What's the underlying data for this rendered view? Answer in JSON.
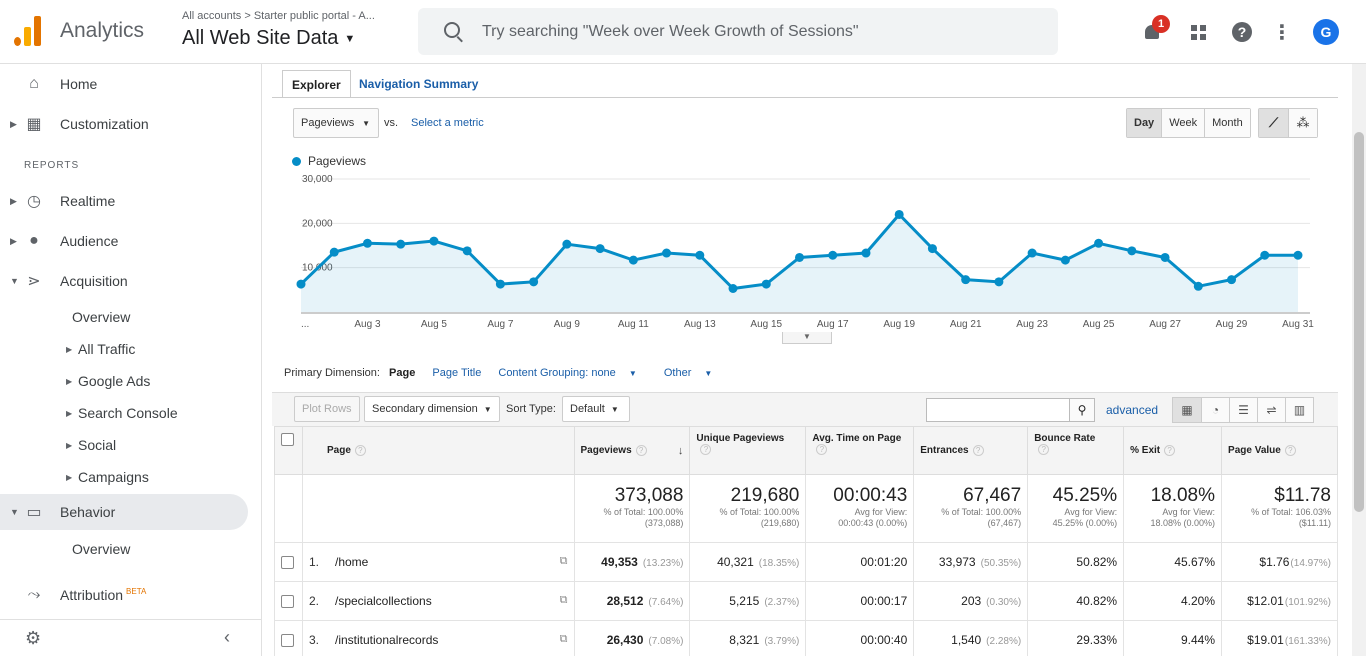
{
  "header": {
    "brand": "Analytics",
    "account_crumb": "All accounts > Starter public portal - A...",
    "account_name": "All Web Site Data",
    "search_placeholder": "Try searching \"Week over Week Growth of Sessions\"",
    "notification_count": "1",
    "avatar_letter": "G",
    "icons": [
      "search-icon",
      "bell-icon",
      "apps-icon",
      "help-icon",
      "more-vert-icon"
    ]
  },
  "sidebar": {
    "home": "Home",
    "customization": "Customization",
    "reports_heading": "REPORTS",
    "realtime": "Realtime",
    "audience": "Audience",
    "acquisition": "Acquisition",
    "acq_overview": "Overview",
    "all_traffic": "All Traffic",
    "google_ads": "Google Ads",
    "search_console": "Search Console",
    "social": "Social",
    "campaigns": "Campaigns",
    "behavior": "Behavior",
    "beh_overview": "Overview",
    "attribution": "Attribution",
    "beta": "BETA"
  },
  "tabs": {
    "explorer": "Explorer",
    "nav_summary": "Navigation Summary"
  },
  "controls": {
    "metric": "Pageviews",
    "vs": "vs.",
    "select_metric": "Select a metric",
    "day": "Day",
    "week": "Week",
    "month": "Month"
  },
  "chart_data": {
    "type": "area",
    "legend": [
      "Pageviews"
    ],
    "yticks": [
      "30,000",
      "20,000",
      "10,000"
    ],
    "ylim": [
      0,
      30000
    ],
    "xlabels": [
      "...",
      "Aug 3",
      "Aug 5",
      "Aug 7",
      "Aug 9",
      "Aug 11",
      "Aug 13",
      "Aug 15",
      "Aug 17",
      "Aug 19",
      "Aug 21",
      "Aug 23",
      "Aug 25",
      "Aug 27",
      "Aug 29",
      "Aug 31"
    ],
    "x": [
      1,
      2,
      3,
      4,
      5,
      6,
      7,
      8,
      9,
      10,
      11,
      12,
      13,
      14,
      15,
      16,
      17,
      18,
      19,
      20,
      21,
      22,
      23,
      24,
      25,
      26,
      27,
      28,
      29,
      30,
      31
    ],
    "series": [
      {
        "name": "Pageviews",
        "color": "#058dc7",
        "values": [
          6300,
          13500,
          15500,
          15300,
          16000,
          13800,
          6300,
          6800,
          15300,
          14300,
          11700,
          13300,
          12800,
          5300,
          6300,
          12300,
          12800,
          13300,
          22000,
          14300,
          7300,
          6800,
          13300,
          11700,
          15500,
          13800,
          12300,
          5800,
          7300,
          12800,
          12800
        ]
      }
    ]
  },
  "dimension": {
    "label": "Primary Dimension:",
    "current": "Page",
    "page_title": "Page Title",
    "content_grouping": "Content Grouping: none",
    "other": "Other"
  },
  "toolbar": {
    "plot_rows": "Plot Rows",
    "secondary": "Secondary dimension",
    "sort_type_label": "Sort Type:",
    "sort_type": "Default",
    "advanced": "advanced"
  },
  "table": {
    "headers": {
      "page": "Page",
      "pageviews": "Pageviews",
      "unique": "Unique Pageviews",
      "avgtime": "Avg. Time on Page",
      "entrances": "Entrances",
      "bounce": "Bounce Rate",
      "exit": "% Exit",
      "value": "Page Value"
    },
    "totals": {
      "pageviews": "373,088",
      "pageviews_sub1": "% of Total: 100.00%",
      "pageviews_sub2": "(373,088)",
      "unique": "219,680",
      "unique_sub1": "% of Total: 100.00%",
      "unique_sub2": "(219,680)",
      "avgtime": "00:00:43",
      "avgtime_sub1": "Avg for View:",
      "avgtime_sub2": "00:00:43 (0.00%)",
      "entrances": "67,467",
      "entrances_sub1": "% of Total: 100.00%",
      "entrances_sub2": "(67,467)",
      "bounce": "45.25%",
      "bounce_sub1": "Avg for View:",
      "bounce_sub2": "45.25% (0.00%)",
      "exit": "18.08%",
      "exit_sub1": "Avg for View:",
      "exit_sub2": "18.08% (0.00%)",
      "value": "$11.78",
      "value_sub1": "% of Total: 106.03%",
      "value_sub2": "($11.11)"
    },
    "rows": [
      {
        "num": "1.",
        "page": "/home",
        "pv": "49,353",
        "pv_pct": "(13.23%)",
        "upv": "40,321",
        "upv_pct": "(18.35%)",
        "time": "00:01:20",
        "ent": "33,973",
        "ent_pct": "(50.35%)",
        "bounce": "50.82%",
        "exit": "45.67%",
        "val": "$1.76",
        "val_pct": "(14.97%)"
      },
      {
        "num": "2.",
        "page": "/specialcollections",
        "pv": "28,512",
        "pv_pct": "(7.64%)",
        "upv": "5,215",
        "upv_pct": "(2.37%)",
        "time": "00:00:17",
        "ent": "203",
        "ent_pct": "(0.30%)",
        "bounce": "40.82%",
        "exit": "4.20%",
        "val": "$12.01",
        "val_pct": "(101.92%)"
      },
      {
        "num": "3.",
        "page": "/institutionalrecords",
        "pv": "26,430",
        "pv_pct": "(7.08%)",
        "upv": "8,321",
        "upv_pct": "(3.79%)",
        "time": "00:00:40",
        "ent": "1,540",
        "ent_pct": "(2.28%)",
        "bounce": "29.33%",
        "exit": "9.44%",
        "val": "$19.01",
        "val_pct": "(161.33%)"
      }
    ]
  }
}
